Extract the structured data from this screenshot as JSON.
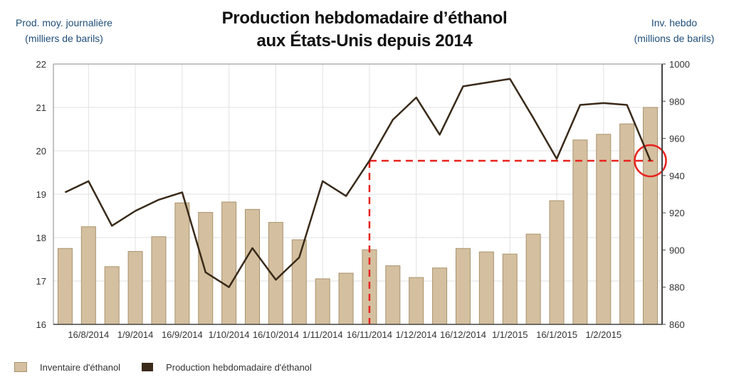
{
  "chart_data": {
    "type": "bar+line",
    "title_lines": [
      "Production hebdomadaire d’éthanol",
      "aux États-Unis depuis 2014"
    ],
    "ylabel_left_lines": [
      "Prod. moy. journalière",
      "(milliers de barils)"
    ],
    "ylabel_right_lines": [
      "Inv. hebdo",
      "(millions de barils)"
    ],
    "y_left": {
      "min": 16,
      "max": 22,
      "ticks": [
        "16",
        "17",
        "18",
        "19",
        "20",
        "21",
        "22"
      ]
    },
    "y_right": {
      "min": 860,
      "max": 1000,
      "ticks": [
        "860",
        "880",
        "900",
        "920",
        "940",
        "960",
        "980",
        "1000"
      ]
    },
    "x_ticks": [
      "16/8/2014",
      "1/9/2014",
      "16/9/2014",
      "1/10/2014",
      "16/10/2014",
      "1/11/2014",
      "16/11/2014",
      "1/12/2014",
      "16/12/2014",
      "1/1/2015",
      "16/1/2015",
      "1/2/2015"
    ],
    "x_tick_positions": [
      1.5,
      3.5,
      5.5,
      7.5,
      9.5,
      11.5,
      13.5,
      15.5,
      17.5,
      19.5,
      21.5,
      23.5
    ],
    "series": [
      {
        "name": "Inventaire d'éthanol",
        "kind": "bar",
        "axis": "left",
        "color": "#d4c0a0",
        "values": [
          17.75,
          18.25,
          17.33,
          17.68,
          18.02,
          18.8,
          18.58,
          18.82,
          18.65,
          18.35,
          17.95,
          17.05,
          17.18,
          17.72,
          17.35,
          17.08,
          17.3,
          17.75,
          17.67,
          17.62,
          18.08,
          18.85,
          20.25,
          20.38,
          20.62,
          21.0
        ]
      },
      {
        "name": "Production hebdomadaire d'éthanol",
        "kind": "line",
        "axis": "right",
        "color": "#3a2a1a",
        "values": [
          931,
          937,
          913,
          921,
          927,
          931,
          888,
          880,
          901,
          884,
          896,
          937,
          929,
          948,
          970,
          982,
          962,
          988,
          990,
          992,
          971,
          949,
          978,
          979,
          978,
          948
        ]
      }
    ],
    "annotations": {
      "reference_level_right": 948,
      "reference_start_index": 13,
      "reference_end_index": 25,
      "circle_index": 25,
      "color": "#e8231e"
    },
    "grid": true,
    "legend_placement": "bottom-left"
  }
}
